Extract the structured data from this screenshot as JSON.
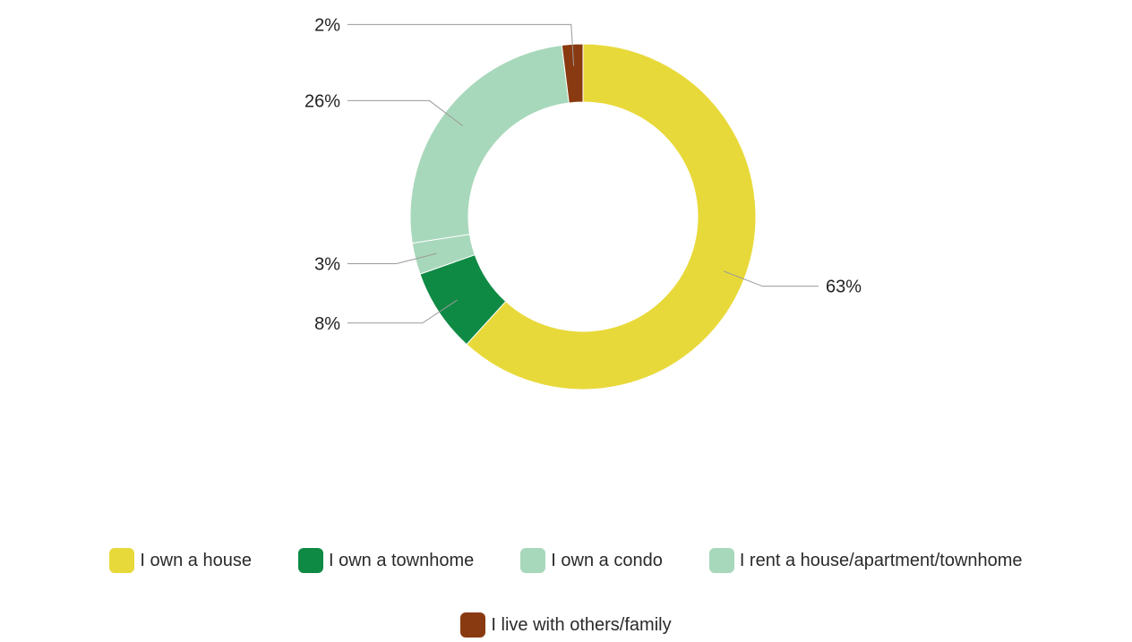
{
  "chart_data": {
    "type": "pie",
    "donut": true,
    "title": "",
    "legend_position": "bottom",
    "slices": [
      {
        "name": "I own a house",
        "value": 63,
        "label": "63%",
        "color": "#e8d93a"
      },
      {
        "name": "I own a townhome",
        "value": 8,
        "label": "8%",
        "color": "#0f8a45"
      },
      {
        "name": "I own a condo",
        "value": 3,
        "label": "3%",
        "color": "#a8d8bb"
      },
      {
        "name": "I rent a house/apartment/townhome",
        "value": 26,
        "label": "26%",
        "color": "#a8d8bb"
      },
      {
        "name": "I live with others/family",
        "value": 2,
        "label": "2%",
        "color": "#8a3a10"
      }
    ]
  },
  "legend": {
    "row1": [
      {
        "label": "I own a house",
        "color": "#e8d93a"
      },
      {
        "label": "I own a townhome",
        "color": "#0f8a45"
      },
      {
        "label": "I own a condo",
        "color": "#a8d8bb"
      },
      {
        "label": "I rent a house/apartment/townhome",
        "color": "#a8d8bb"
      }
    ],
    "row2": [
      {
        "label": "I live with others/family",
        "color": "#8a3a10"
      }
    ]
  }
}
